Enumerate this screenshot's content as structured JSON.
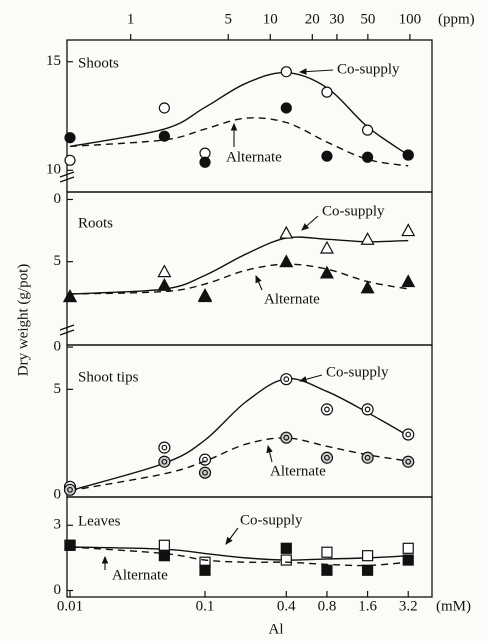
{
  "chart_data": {
    "type": "line",
    "y_label": "Dry weight (g/pot)",
    "x_label": "Al",
    "xscale": "log",
    "x_unit": "(mM)",
    "xlim": [
      0.0095,
      4.8
    ],
    "xticks": [
      0.01,
      0.1,
      0.4,
      0.8,
      1.6,
      3.2
    ],
    "x2scale": "log",
    "x2_unit": "(ppm)",
    "x2lim": [
      0.35,
      144
    ],
    "x2ticks": [
      1,
      5,
      10,
      20,
      30,
      50,
      100
    ],
    "color": "#111111",
    "x": [
      0.01,
      0.05,
      0.1,
      0.4,
      0.8,
      1.6,
      3.2
    ],
    "fit_x": [
      0.01,
      0.05,
      0.1,
      0.2,
      0.4,
      0.8,
      1.6,
      3.2
    ],
    "panels": [
      {
        "title": "Shoots",
        "ylim": [
          9,
          16
        ],
        "yticks": [
          10,
          15
        ],
        "series": [
          {
            "name": "Co-supply",
            "marker": "circle-open",
            "line": "solid",
            "values": [
              10.46,
              12.87,
              10.79,
              14.54,
              13.6,
              11.85,
              10.7
            ],
            "fit": [
              11.1,
              11.9,
              12.9,
              14.0,
              14.5,
              13.8,
              12.0,
              10.7
            ]
          },
          {
            "name": "Alternate",
            "marker": "circle-filled",
            "line": "dashed",
            "values": [
              11.5,
              11.57,
              10.37,
              12.87,
              10.65,
              10.6,
              10.7
            ],
            "fit": [
              11.1,
              11.4,
              11.9,
              12.4,
              12.2,
              11.3,
              10.5,
              10.2
            ]
          }
        ]
      },
      {
        "title": "Roots",
        "ylim": [
          -1.7,
          10.6
        ],
        "yticks": [
          {
            "value": 10,
            "label": "0"
          },
          5
        ],
        "series": [
          {
            "name": "Co-supply",
            "marker": "triangle-open",
            "line": "solid",
            "values": [
              2.2,
              4.2,
              2.3,
              7.3,
              6.1,
              6.8,
              7.5
            ],
            "fit": [
              2.4,
              2.8,
              3.9,
              5.6,
              6.9,
              6.8,
              6.6,
              6.7
            ]
          },
          {
            "name": "Alternate",
            "marker": "triangle-filled",
            "line": "dashed",
            "values": [
              2.2,
              3.1,
              2.2,
              5.0,
              4.1,
              2.9,
              3.4
            ],
            "fit": [
              2.4,
              2.6,
              3.2,
              4.3,
              4.8,
              4.4,
              3.4,
              2.8
            ]
          }
        ]
      },
      {
        "title": "Shoot tips",
        "ylim": [
          -0.1,
          7.1
        ],
        "yticks": [
          {
            "value": 7,
            "label": "0"
          },
          5,
          0
        ],
        "series": [
          {
            "name": "Co-supply",
            "marker": "bullseye-open",
            "line": "solid",
            "values": [
              0.38,
              2.24,
              1.67,
              5.48,
              4.05,
              4.05,
              2.86
            ],
            "fit": [
              0.2,
              1.5,
              2.6,
              4.4,
              5.5,
              4.9,
              3.9,
              2.8
            ]
          },
          {
            "name": "Alternate",
            "marker": "bullseye-gray",
            "line": "dashed",
            "values": [
              0.24,
              1.57,
              1.05,
              2.71,
              1.76,
              1.76,
              1.57
            ],
            "fit": [
              0.2,
              1.0,
              1.6,
              2.4,
              2.7,
              2.3,
              1.9,
              1.6
            ]
          }
        ]
      },
      {
        "title": "Leaves",
        "ylim": [
          -0.3,
          4.3
        ],
        "yticks": [
          3,
          0
        ],
        "series": [
          {
            "name": "Co-supply",
            "marker": "square-open",
            "line": "solid",
            "values": [
              2.08,
              2.08,
              1.3,
              1.4,
              1.76,
              1.6,
              1.94
            ],
            "fit": [
              2.0,
              1.9,
              1.7,
              1.5,
              1.4,
              1.45,
              1.5,
              1.6
            ]
          },
          {
            "name": "Alternate",
            "marker": "square-filled",
            "line": "dashed",
            "values": [
              2.08,
              1.6,
              0.93,
              1.94,
              0.93,
              0.93,
              1.4
            ],
            "fit": [
              2.0,
              1.7,
              1.4,
              1.3,
              1.3,
              1.2,
              1.15,
              1.3
            ]
          }
        ]
      }
    ]
  }
}
